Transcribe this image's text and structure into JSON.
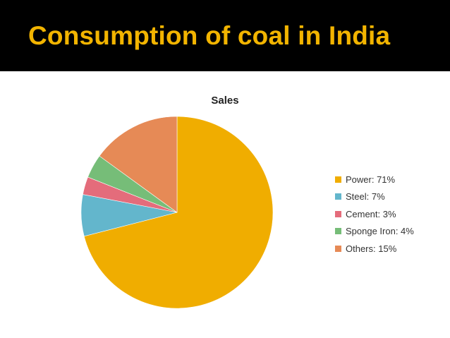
{
  "slide": {
    "title": "Consumption of coal in India",
    "title_color": "#f2b400",
    "header_bg": "#000000"
  },
  "chart_data": {
    "type": "pie",
    "title": "Sales",
    "legend_position": "right",
    "slices": [
      {
        "label": "Power",
        "value": 71,
        "color": "#f0ad00",
        "legend": "Power: 71%"
      },
      {
        "label": "Steel",
        "value": 7,
        "color": "#63b6cc",
        "legend": "Steel: 7%"
      },
      {
        "label": "Cement",
        "value": 3,
        "color": "#e46c7b",
        "legend": "Cement: 3%"
      },
      {
        "label": "Sponge Iron",
        "value": 4,
        "color": "#76bd78",
        "legend": "Sponge Iron: 4%"
      },
      {
        "label": "Others",
        "value": 15,
        "color": "#e68a56",
        "legend": "Others: 15%"
      }
    ]
  }
}
